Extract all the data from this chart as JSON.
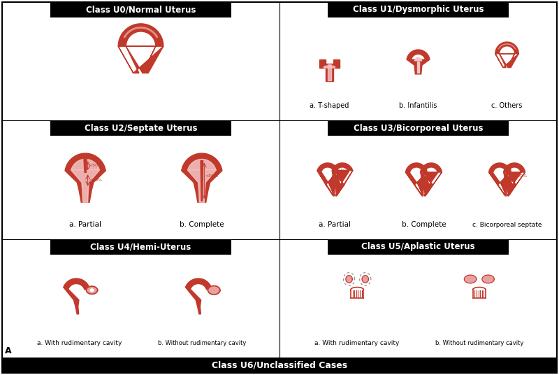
{
  "background_color": "#ffffff",
  "header_bg": "#000000",
  "header_text_color": "#ffffff",
  "red": "#c0392b",
  "pink": "#e8a0a0",
  "dark_red": "#8b1a1a",
  "bottom_bar": "Class U6/Unclassified Cases",
  "bottom_label": "A",
  "cell_titles": [
    [
      "Class U0/Normal Uterus",
      "Class U1/Dysmorphic Uterus"
    ],
    [
      "Class U2/Septate Uterus",
      "Class U3/Bicorporeal Uterus"
    ],
    [
      "Class U4/Hemi-Uterus",
      "Class U5/Aplastic Uterus"
    ]
  ],
  "sublabels": {
    "u1": [
      "a. T-shaped",
      "b. Infantilis",
      "c. Others"
    ],
    "u2": [
      "a. Partial",
      "b. Complete"
    ],
    "u3": [
      "a. Partial",
      "b. Complete",
      "c. Bicorporeal septate"
    ],
    "u4": [
      "a. With rudimentary cavity",
      "b. Without rudimentary cavity"
    ],
    "u5": [
      "a. With rudimentary cavity",
      "b. Without rudimentary cavity"
    ]
  }
}
